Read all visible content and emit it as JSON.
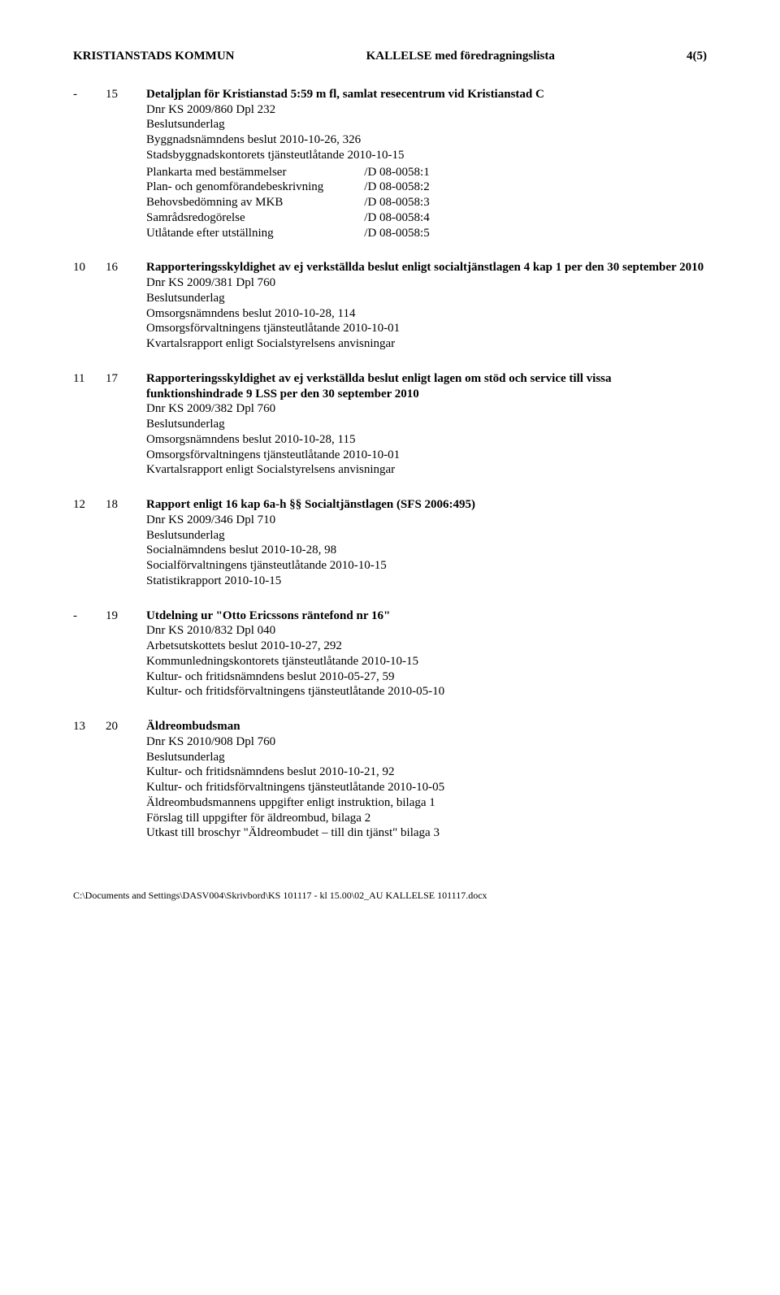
{
  "header": {
    "left": "KRISTIANSTADS KOMMUN",
    "center": "KALLELSE med föredragningslista",
    "right": "4(5)"
  },
  "items": [
    {
      "colA": "-",
      "colB": "15",
      "title_bold": "Detaljplan för Kristianstad 5:59 m fl, samlat resecentrum vid Kristianstad C",
      "dnr": "Dnr KS 2009/860  Dpl 232",
      "underlag_label": "Beslutsunderlag",
      "lines": [
        "Byggnadsnämndens beslut 2010-10-26, 326",
        "Stadsbyggnadskontorets tjänsteutlåtande 2010-10-15"
      ],
      "codes": [
        {
          "label": "Plankarta med bestämmelser",
          "code": "/D 08-0058:1"
        },
        {
          "label": "Plan- och genomförandebeskrivning",
          "code": "/D 08-0058:2"
        },
        {
          "label": "Behovsbedömning av MKB",
          "code": "/D 08-0058:3"
        },
        {
          "label": "Samrådsredogörelse",
          "code": "/D 08-0058:4"
        },
        {
          "label": "Utlåtande efter utställning",
          "code": "/D 08-0058:5"
        }
      ]
    },
    {
      "colA": "10",
      "colB": "16",
      "title_bold": "Rapporteringsskyldighet av ej verkställda beslut enligt socialtjänstlagen 4 kap 1 per den 30 september 2010",
      "dnr": "Dnr KS 2009/381  Dpl 760",
      "underlag_label": "Beslutsunderlag",
      "lines": [
        "Omsorgsnämndens beslut 2010-10-28, 114",
        "Omsorgsförvaltningens tjänsteutlåtande 2010-10-01",
        "Kvartalsrapport enligt Socialstyrelsens anvisningar"
      ],
      "codes": []
    },
    {
      "colA": "11",
      "colB": "17",
      "title_bold": "Rapporteringsskyldighet av ej verkställda beslut enligt lagen om stöd och service till vissa funktionshindrade 9 LSS per den 30 september 2010",
      "dnr": "Dnr KS 2009/382  Dpl 760",
      "underlag_label": "Beslutsunderlag",
      "lines": [
        "Omsorgsnämndens beslut 2010-10-28, 115",
        "Omsorgsförvaltningens tjänsteutlåtande 2010-10-01",
        "Kvartalsrapport enligt Socialstyrelsens anvisningar"
      ],
      "codes": []
    },
    {
      "colA": "12",
      "colB": "18",
      "title_bold": "Rapport enligt 16 kap 6a-h §§ Socialtjänstlagen (SFS 2006:495)",
      "dnr": "Dnr KS 2009/346  Dpl 710",
      "underlag_label": "Beslutsunderlag",
      "lines": [
        "Socialnämndens beslut 2010-10-28, 98",
        "Socialförvaltningens tjänsteutlåtande 2010-10-15",
        "Statistikrapport 2010-10-15"
      ],
      "codes": []
    },
    {
      "colA": "-",
      "colB": "19",
      "title_bold": "Utdelning ur \"Otto Ericssons räntefond nr 16\"",
      "dnr": "Dnr KS 2010/832  Dpl 040",
      "underlag_label": "",
      "lines": [
        "Arbetsutskottets beslut 2010-10-27, 292",
        "Kommunledningskontorets tjänsteutlåtande 2010-10-15",
        "Kultur- och fritidsnämndens beslut 2010-05-27, 59",
        "Kultur- och fritidsförvaltningens tjänsteutlåtande 2010-05-10"
      ],
      "codes": []
    },
    {
      "colA": "13",
      "colB": "20",
      "title_bold": "Äldreombudsman",
      "dnr": "Dnr KS 2010/908  Dpl 760",
      "underlag_label": "Beslutsunderlag",
      "lines": [
        "Kultur- och fritidsnämndens beslut 2010-10-21, 92",
        "Kultur- och fritidsförvaltningens tjänsteutlåtande 2010-10-05",
        "Äldreombudsmannens uppgifter enligt instruktion, bilaga 1",
        "Förslag till uppgifter för äldreombud, bilaga 2",
        "Utkast till broschyr \"Äldreombudet – till din tjänst\" bilaga 3"
      ],
      "codes": []
    }
  ],
  "footer": "C:\\Documents and Settings\\DASV004\\Skrivbord\\KS 101117 - kl 15.00\\02_AU KALLELSE 101117.docx"
}
